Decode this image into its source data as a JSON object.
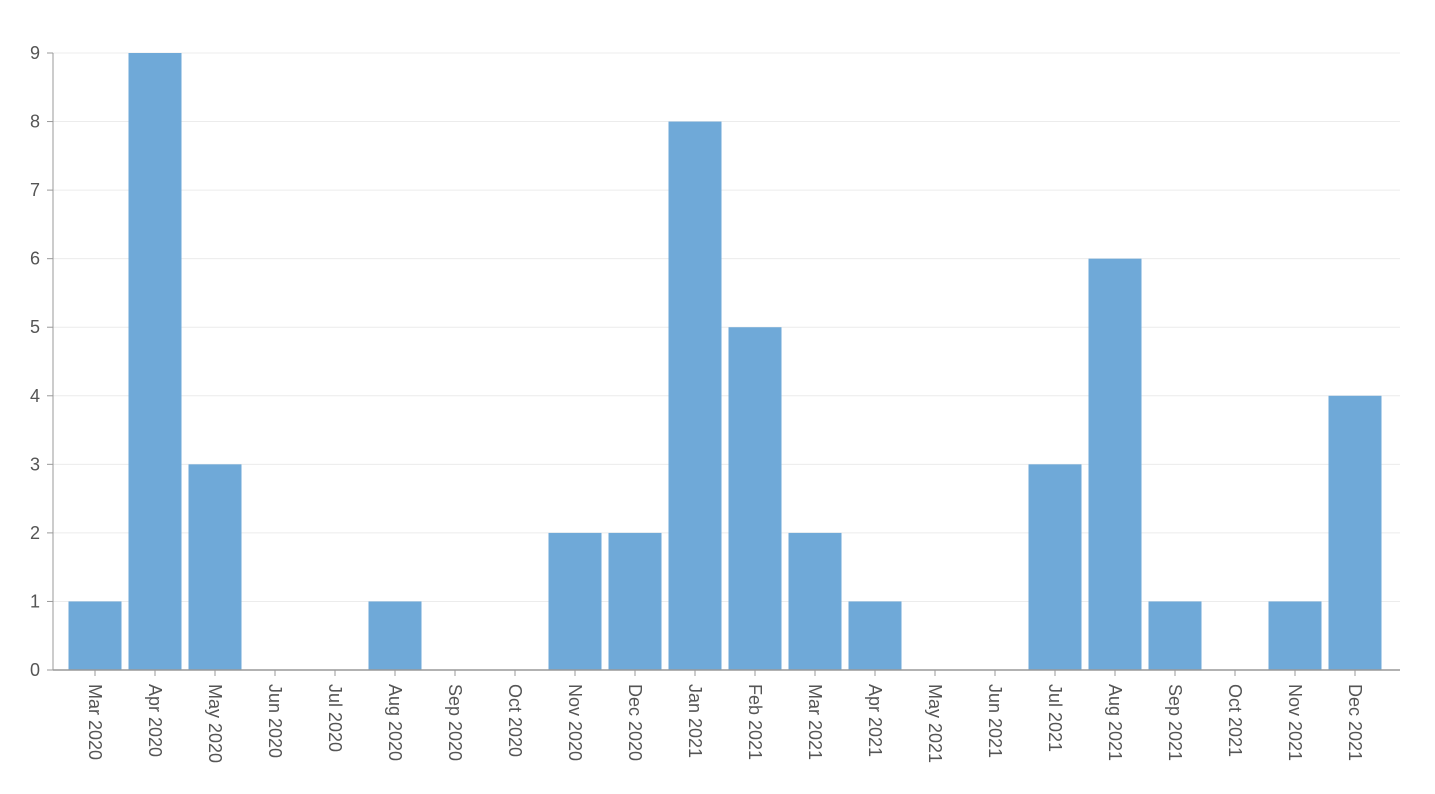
{
  "chart_data": {
    "type": "bar",
    "title": "",
    "xlabel": "",
    "ylabel": "",
    "categories": [
      "Mar 2020",
      "Apr 2020",
      "May 2020",
      "Jun 2020",
      "Jul 2020",
      "Aug 2020",
      "Sep 2020",
      "Oct 2020",
      "Nov 2020",
      "Dec 2020",
      "Jan 2021",
      "Feb 2021",
      "Mar 2021",
      "Apr 2021",
      "May 2021",
      "Jun 2021",
      "Jul 2021",
      "Aug 2021",
      "Sep 2021",
      "Oct 2021",
      "Nov 2021",
      "Dec 2021"
    ],
    "values": [
      1,
      9,
      3,
      0,
      0,
      1,
      0,
      0,
      2,
      2,
      8,
      5,
      2,
      1,
      0,
      0,
      3,
      6,
      1,
      0,
      1,
      4
    ],
    "ylim": [
      0,
      9
    ],
    "yticks": [
      0,
      1,
      2,
      3,
      4,
      5,
      6,
      7,
      8,
      9
    ],
    "grid": true,
    "legend": "none",
    "colors": {
      "bar": "#6fa9d8",
      "grid": "#ececec",
      "axis": "#999999",
      "tick_text": "#555555"
    }
  }
}
